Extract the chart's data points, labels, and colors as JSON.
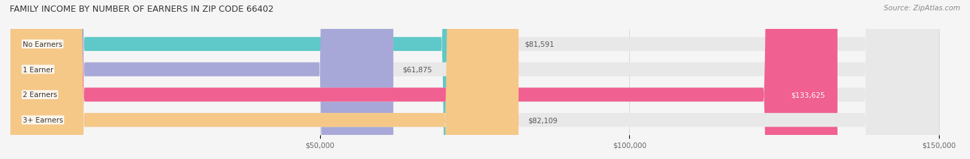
{
  "title": "FAMILY INCOME BY NUMBER OF EARNERS IN ZIP CODE 66402",
  "source": "Source: ZipAtlas.com",
  "categories": [
    "No Earners",
    "1 Earner",
    "2 Earners",
    "3+ Earners"
  ],
  "values": [
    81591,
    61875,
    133625,
    82109
  ],
  "bar_colors": [
    "#5fc8c8",
    "#a8a8d8",
    "#f06090",
    "#f5c888"
  ],
  "bar_labels": [
    "$81,591",
    "$61,875",
    "$133,625",
    "$82,109"
  ],
  "label_colors": [
    "#555555",
    "#555555",
    "#ffffff",
    "#555555"
  ],
  "xmin": 0,
  "xmax": 150000,
  "xticks": [
    50000,
    100000,
    150000
  ],
  "xtick_labels": [
    "$50,000",
    "$100,000",
    "$150,000"
  ],
  "background_color": "#f5f5f5",
  "bar_background": "#e8e8e8",
  "bar_height": 0.55,
  "figsize": [
    14.06,
    2.32
  ],
  "dpi": 100
}
